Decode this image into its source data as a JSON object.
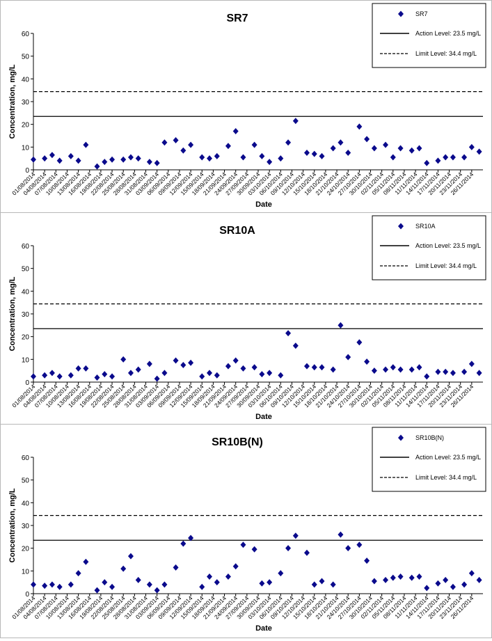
{
  "x_dates": [
    "01/08/2014",
    "04/08/2014",
    "07/08/2014",
    "10/08/2014",
    "13/08/2014",
    "16/08/2014",
    "19/08/2014",
    "22/08/2014",
    "25/08/2014",
    "28/08/2014",
    "31/08/2014",
    "03/09/2014",
    "06/09/2014",
    "09/09/2014",
    "12/09/2014",
    "15/09/2014",
    "18/09/2014",
    "21/09/2014",
    "24/09/2014",
    "27/09/2014",
    "30/09/2014",
    "03/10/2014",
    "06/10/2014",
    "09/10/2014",
    "12/10/2014",
    "15/10/2014",
    "18/10/2014",
    "21/10/2014",
    "24/10/2014",
    "27/10/2014",
    "30/10/2014",
    "02/11/2014",
    "05/11/2014",
    "08/11/2014",
    "11/11/2014",
    "14/11/2014",
    "17/11/2014",
    "20/11/2014",
    "23/11/2014",
    "26/11/2014"
  ],
  "chart_data": [
    {
      "type": "scatter",
      "title": "SR7",
      "xlabel": "Date",
      "ylabel": "Concentration, mg/L",
      "ylim": [
        0,
        60
      ],
      "yticks": [
        0,
        10,
        20,
        30,
        40,
        50,
        60
      ],
      "xlim": [
        "2014-08-01",
        "2014-11-29"
      ],
      "series": [
        {
          "name": "SR7",
          "x": [
            "2014-08-01",
            "2014-08-04",
            "2014-08-06",
            "2014-08-08",
            "2014-08-11",
            "2014-08-13",
            "2014-08-15",
            "2014-08-18",
            "2014-08-20",
            "2014-08-22",
            "2014-08-25",
            "2014-08-27",
            "2014-08-29",
            "2014-09-01",
            "2014-09-03",
            "2014-09-05",
            "2014-09-08",
            "2014-09-10",
            "2014-09-12",
            "2014-09-15",
            "2014-09-17",
            "2014-09-19",
            "2014-09-22",
            "2014-09-24",
            "2014-09-26",
            "2014-09-29",
            "2014-10-01",
            "2014-10-03",
            "2014-10-06",
            "2014-10-08",
            "2014-10-10",
            "2014-10-13",
            "2014-10-15",
            "2014-10-17",
            "2014-10-20",
            "2014-10-22",
            "2014-10-24",
            "2014-10-27",
            "2014-10-29",
            "2014-10-31",
            "2014-11-03",
            "2014-11-05",
            "2014-11-07",
            "2014-11-10",
            "2014-11-12",
            "2014-11-14",
            "2014-11-17",
            "2014-11-19",
            "2014-11-21",
            "2014-11-24",
            "2014-11-26",
            "2014-11-28"
          ],
          "y": [
            4.5,
            5,
            6.5,
            4,
            6,
            4,
            11,
            1.5,
            3.5,
            4.5,
            4.5,
            5.5,
            5,
            3.5,
            3,
            12,
            13,
            8.5,
            11,
            5.5,
            5,
            6,
            10.5,
            17,
            5.5,
            11,
            6,
            3.5,
            5,
            12,
            21.5,
            7.5,
            7,
            6,
            9.5,
            12,
            7.5,
            19,
            13.5,
            9.5,
            11,
            5.5,
            9.5,
            8.5,
            9.5,
            3,
            4,
            5.5,
            5.5,
            5.5,
            10,
            8
          ]
        }
      ],
      "reference_lines": [
        {
          "name": "Action Level: 23.5 mg/L",
          "value": 23.5,
          "style": "solid"
        },
        {
          "name": "Limit Level: 34.4 mg/L",
          "value": 34.4,
          "style": "dashed"
        }
      ],
      "legend": "top-right"
    },
    {
      "type": "scatter",
      "title": "SR10A",
      "xlabel": "Date",
      "ylabel": "Concentration, mg/L",
      "ylim": [
        0,
        60
      ],
      "yticks": [
        0,
        10,
        20,
        30,
        40,
        50,
        60
      ],
      "xlim": [
        "2014-08-01",
        "2014-11-29"
      ],
      "series": [
        {
          "name": "SR10A",
          "x": [
            "2014-08-01",
            "2014-08-04",
            "2014-08-06",
            "2014-08-08",
            "2014-08-11",
            "2014-08-13",
            "2014-08-15",
            "2014-08-18",
            "2014-08-20",
            "2014-08-22",
            "2014-08-25",
            "2014-08-27",
            "2014-08-29",
            "2014-09-01",
            "2014-09-03",
            "2014-09-05",
            "2014-09-08",
            "2014-09-10",
            "2014-09-12",
            "2014-09-15",
            "2014-09-17",
            "2014-09-19",
            "2014-09-22",
            "2014-09-24",
            "2014-09-26",
            "2014-09-29",
            "2014-10-01",
            "2014-10-03",
            "2014-10-06",
            "2014-10-08",
            "2014-10-10",
            "2014-10-13",
            "2014-10-15",
            "2014-10-17",
            "2014-10-20",
            "2014-10-22",
            "2014-10-24",
            "2014-10-27",
            "2014-10-29",
            "2014-10-31",
            "2014-11-03",
            "2014-11-05",
            "2014-11-07",
            "2014-11-10",
            "2014-11-12",
            "2014-11-14",
            "2014-11-17",
            "2014-11-19",
            "2014-11-21",
            "2014-11-24",
            "2014-11-26",
            "2014-11-28"
          ],
          "y": [
            2.5,
            3,
            4,
            2.5,
            3,
            6,
            6,
            2,
            3.5,
            2.5,
            10,
            4,
            5.5,
            8,
            1.5,
            4,
            9.5,
            7.5,
            8.5,
            2.5,
            4,
            3,
            7,
            9.5,
            6,
            6.5,
            3.5,
            4,
            3,
            21.5,
            16,
            7,
            6.5,
            6.5,
            5.5,
            25,
            11,
            17.5,
            9,
            5,
            5.5,
            6.5,
            5.5,
            5.5,
            6.5,
            2.5,
            4.5,
            4.5,
            4,
            4.5,
            8,
            4
          ]
        }
      ],
      "reference_lines": [
        {
          "name": "Action Level: 23.5 mg/L",
          "value": 23.5,
          "style": "solid"
        },
        {
          "name": "Limit Level: 34.4 mg/L",
          "value": 34.4,
          "style": "dashed"
        }
      ],
      "legend": "top-right"
    },
    {
      "type": "scatter",
      "title": "SR10B(N)",
      "xlabel": "Date",
      "ylabel": "Concentration, mg/L",
      "ylim": [
        0,
        60
      ],
      "yticks": [
        0,
        10,
        20,
        30,
        40,
        50,
        60
      ],
      "xlim": [
        "2014-08-01",
        "2014-11-29"
      ],
      "series": [
        {
          "name": "SR10B(N)",
          "x": [
            "2014-08-01",
            "2014-08-04",
            "2014-08-06",
            "2014-08-08",
            "2014-08-11",
            "2014-08-13",
            "2014-08-15",
            "2014-08-18",
            "2014-08-20",
            "2014-08-22",
            "2014-08-25",
            "2014-08-27",
            "2014-08-29",
            "2014-09-01",
            "2014-09-03",
            "2014-09-05",
            "2014-09-08",
            "2014-09-10",
            "2014-09-12",
            "2014-09-15",
            "2014-09-17",
            "2014-09-19",
            "2014-09-22",
            "2014-09-24",
            "2014-09-26",
            "2014-09-29",
            "2014-10-01",
            "2014-10-03",
            "2014-10-06",
            "2014-10-08",
            "2014-10-10",
            "2014-10-13",
            "2014-10-15",
            "2014-10-17",
            "2014-10-20",
            "2014-10-22",
            "2014-10-24",
            "2014-10-27",
            "2014-10-29",
            "2014-10-31",
            "2014-11-03",
            "2014-11-05",
            "2014-11-07",
            "2014-11-10",
            "2014-11-12",
            "2014-11-14",
            "2014-11-17",
            "2014-11-19",
            "2014-11-21",
            "2014-11-24",
            "2014-11-26",
            "2014-11-28"
          ],
          "y": [
            4,
            3.5,
            4,
            3,
            4,
            9,
            14,
            1.5,
            5,
            3,
            11,
            16.5,
            6,
            4,
            1.5,
            4,
            11.5,
            22,
            24.5,
            3,
            7.5,
            5,
            7.5,
            12,
            21.5,
            19.5,
            4.5,
            5,
            9,
            20,
            25.5,
            18,
            4,
            5.5,
            4,
            26,
            20,
            21.5,
            14.5,
            5.5,
            6,
            7,
            7.5,
            7,
            7.5,
            2.5,
            4.5,
            6,
            3,
            4,
            9,
            6
          ]
        }
      ],
      "reference_lines": [
        {
          "name": "Action Level: 23.5 mg/L",
          "value": 23.5,
          "style": "solid"
        },
        {
          "name": "Limit Level: 34.4 mg/L",
          "value": 34.4,
          "style": "dashed"
        }
      ],
      "legend": "top-right"
    }
  ],
  "colors": {
    "marker": "#0a0a8c",
    "line": "#000000",
    "text": "#000000",
    "border": "#b8b8b8"
  }
}
